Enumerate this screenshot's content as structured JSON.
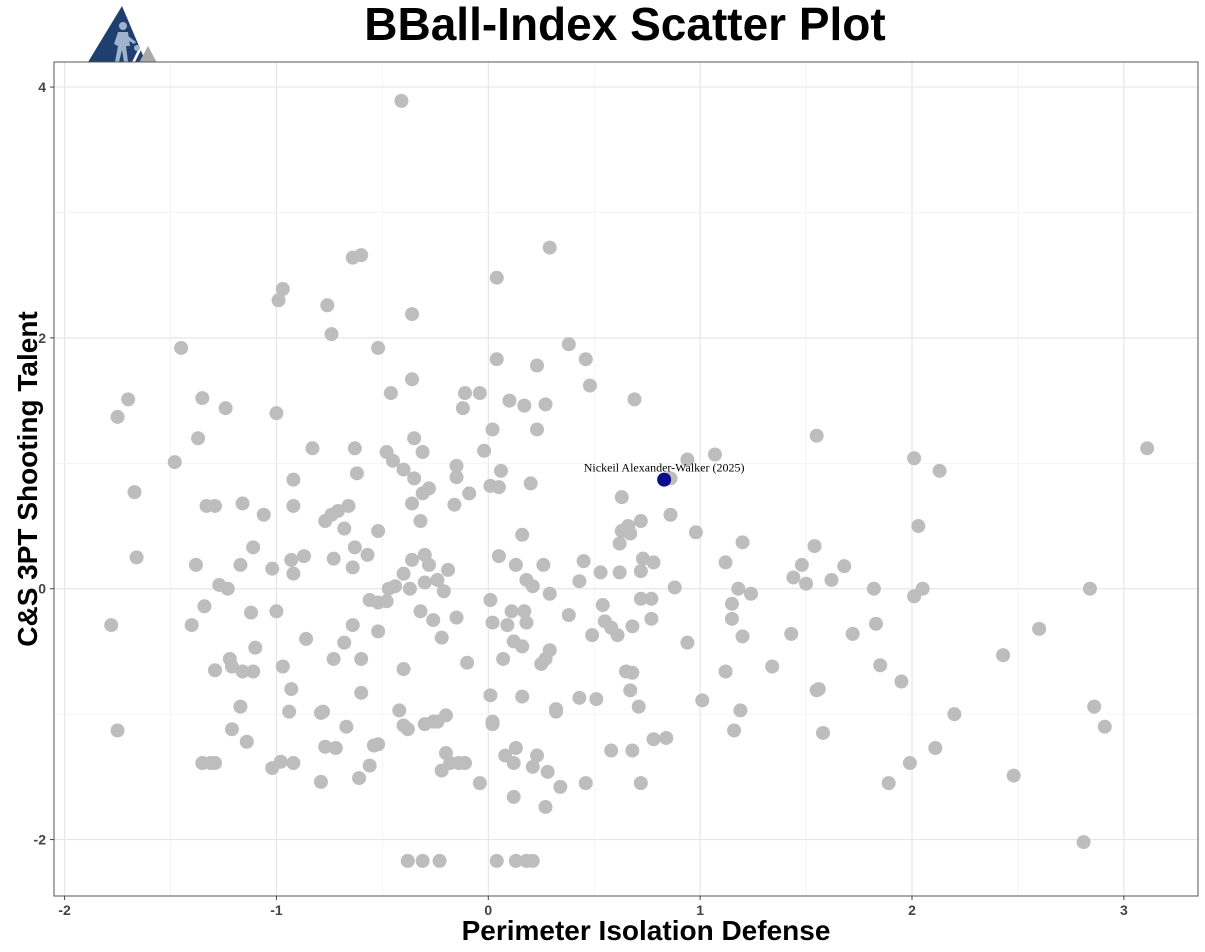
{
  "chart_data": {
    "type": "scatter",
    "title": "BBall-Index Scatter Plot",
    "xlabel": "Perimeter Isolation Defense",
    "ylabel": "C&S 3PT Shooting Talent",
    "xlim": [
      -2.05,
      3.35
    ],
    "ylim": [
      -2.45,
      4.2
    ],
    "xticks": [
      -2,
      -1,
      0,
      1,
      2,
      3
    ],
    "yticks": [
      -2,
      0,
      2,
      4
    ],
    "xtick_labels": [
      "-2",
      "-1",
      "0",
      "1",
      "2",
      "3"
    ],
    "ytick_labels": [
      "-2",
      "0",
      "2",
      "4"
    ],
    "grid": true,
    "point_color": "#bdbdbd",
    "highlight_color": "#0d0d8c",
    "highlight": {
      "label": "Nickeil Alexander-Walker (2025)",
      "x": 0.83,
      "y": 0.87
    },
    "points": [
      [
        -0.41,
        3.89
      ],
      [
        0.29,
        2.72
      ],
      [
        0.04,
        2.48
      ],
      [
        -0.64,
        2.64
      ],
      [
        -0.6,
        2.66
      ],
      [
        -0.97,
        2.39
      ],
      [
        -0.99,
        2.3
      ],
      [
        -0.76,
        2.26
      ],
      [
        -0.36,
        2.19
      ],
      [
        -0.74,
        2.03
      ],
      [
        -1.45,
        1.92
      ],
      [
        -0.52,
        1.92
      ],
      [
        0.38,
        1.95
      ],
      [
        0.46,
        1.83
      ],
      [
        0.04,
        1.83
      ],
      [
        0.23,
        1.78
      ],
      [
        -0.36,
        1.67
      ],
      [
        -0.46,
        1.56
      ],
      [
        -0.11,
        1.56
      ],
      [
        -0.04,
        1.56
      ],
      [
        0.48,
        1.62
      ],
      [
        -1.7,
        1.51
      ],
      [
        -1.35,
        1.52
      ],
      [
        -0.12,
        1.44
      ],
      [
        0.1,
        1.5
      ],
      [
        0.17,
        1.46
      ],
      [
        0.27,
        1.47
      ],
      [
        0.69,
        1.51
      ],
      [
        -1.75,
        1.37
      ],
      [
        -1.24,
        1.44
      ],
      [
        -1.0,
        1.4
      ],
      [
        0.02,
        1.27
      ],
      [
        0.23,
        1.27
      ],
      [
        -1.37,
        1.2
      ],
      [
        -0.35,
        1.2
      ],
      [
        -0.83,
        1.12
      ],
      [
        -0.63,
        1.12
      ],
      [
        -0.48,
        1.09
      ],
      [
        -0.31,
        1.09
      ],
      [
        -0.02,
        1.1
      ],
      [
        1.55,
        1.22
      ],
      [
        3.11,
        1.12
      ],
      [
        0.94,
        1.03
      ],
      [
        1.07,
        1.07
      ],
      [
        2.01,
        1.04
      ],
      [
        -1.48,
        1.01
      ],
      [
        -0.45,
        1.02
      ],
      [
        -0.4,
        0.95
      ],
      [
        -0.62,
        0.92
      ],
      [
        -0.15,
        0.98
      ],
      [
        0.06,
        0.94
      ],
      [
        0.86,
        0.88
      ],
      [
        2.13,
        0.94
      ],
      [
        -0.92,
        0.87
      ],
      [
        -0.35,
        0.88
      ],
      [
        -0.28,
        0.8
      ],
      [
        -0.15,
        0.89
      ],
      [
        0.01,
        0.82
      ],
      [
        0.05,
        0.81
      ],
      [
        0.2,
        0.84
      ],
      [
        -1.67,
        0.77
      ],
      [
        -1.33,
        0.66
      ],
      [
        -1.29,
        0.66
      ],
      [
        -1.16,
        0.68
      ],
      [
        -0.92,
        0.66
      ],
      [
        -0.66,
        0.66
      ],
      [
        -0.36,
        0.68
      ],
      [
        -0.31,
        0.76
      ],
      [
        -0.09,
        0.76
      ],
      [
        -0.16,
        0.67
      ],
      [
        0.63,
        0.73
      ],
      [
        -1.06,
        0.59
      ],
      [
        -0.71,
        0.62
      ],
      [
        -0.74,
        0.59
      ],
      [
        -0.77,
        0.54
      ],
      [
        -0.68,
        0.48
      ],
      [
        -0.52,
        0.46
      ],
      [
        -0.32,
        0.54
      ],
      [
        0.72,
        0.54
      ],
      [
        0.86,
        0.59
      ],
      [
        0.16,
        0.43
      ],
      [
        0.63,
        0.46
      ],
      [
        0.66,
        0.5
      ],
      [
        0.67,
        0.44
      ],
      [
        0.98,
        0.45
      ],
      [
        2.03,
        0.5
      ],
      [
        -1.11,
        0.33
      ],
      [
        -0.63,
        0.33
      ],
      [
        -0.87,
        0.26
      ],
      [
        -0.73,
        0.24
      ],
      [
        -0.57,
        0.27
      ],
      [
        -0.93,
        0.23
      ],
      [
        -0.36,
        0.23
      ],
      [
        -0.3,
        0.27
      ],
      [
        -0.28,
        0.19
      ],
      [
        0.05,
        0.26
      ],
      [
        0.13,
        0.19
      ],
      [
        0.26,
        0.19
      ],
      [
        0.45,
        0.22
      ],
      [
        0.62,
        0.36
      ],
      [
        0.73,
        0.24
      ],
      [
        0.78,
        0.21
      ],
      [
        1.12,
        0.21
      ],
      [
        1.2,
        0.37
      ],
      [
        1.54,
        0.34
      ],
      [
        1.48,
        0.19
      ],
      [
        1.68,
        0.18
      ],
      [
        -1.66,
        0.25
      ],
      [
        -1.38,
        0.19
      ],
      [
        -1.17,
        0.19
      ],
      [
        -1.02,
        0.16
      ],
      [
        -0.92,
        0.12
      ],
      [
        -0.64,
        0.17
      ],
      [
        -0.4,
        0.12
      ],
      [
        -0.24,
        0.07
      ],
      [
        -0.19,
        0.15
      ],
      [
        0.18,
        0.07
      ],
      [
        0.21,
        0.02
      ],
      [
        0.43,
        0.06
      ],
      [
        0.53,
        0.13
      ],
      [
        0.62,
        0.13
      ],
      [
        0.72,
        0.14
      ],
      [
        0.88,
        0.01
      ],
      [
        1.44,
        0.09
      ],
      [
        1.5,
        0.04
      ],
      [
        1.62,
        0.07
      ],
      [
        1.82,
        0.0
      ],
      [
        2.05,
        0.0
      ],
      [
        2.84,
        0.0
      ],
      [
        1.18,
        0.0
      ],
      [
        1.24,
        -0.04
      ],
      [
        -1.27,
        0.03
      ],
      [
        -1.23,
        0.0
      ],
      [
        -0.47,
        0.0
      ],
      [
        -0.44,
        0.02
      ],
      [
        -0.37,
        0.0
      ],
      [
        -0.3,
        0.05
      ],
      [
        -0.21,
        -0.02
      ],
      [
        -0.56,
        -0.09
      ],
      [
        -0.52,
        -0.11
      ],
      [
        -0.48,
        -0.1
      ],
      [
        0.01,
        -0.09
      ],
      [
        0.29,
        -0.04
      ],
      [
        0.54,
        -0.13
      ],
      [
        0.72,
        -0.08
      ],
      [
        0.77,
        -0.08
      ],
      [
        1.15,
        -0.12
      ],
      [
        2.01,
        -0.06
      ],
      [
        -1.34,
        -0.14
      ],
      [
        -1.12,
        -0.19
      ],
      [
        -1.0,
        -0.18
      ],
      [
        -0.32,
        -0.18
      ],
      [
        -0.15,
        -0.23
      ],
      [
        0.11,
        -0.18
      ],
      [
        0.17,
        -0.18
      ],
      [
        0.38,
        -0.21
      ],
      [
        0.55,
        -0.26
      ],
      [
        0.77,
        -0.24
      ],
      [
        1.15,
        -0.24
      ],
      [
        -1.78,
        -0.29
      ],
      [
        -1.4,
        -0.29
      ],
      [
        -0.26,
        -0.25
      ],
      [
        0.02,
        -0.27
      ],
      [
        0.09,
        -0.29
      ],
      [
        0.18,
        -0.27
      ],
      [
        0.58,
        -0.31
      ],
      [
        0.61,
        -0.37
      ],
      [
        0.68,
        -0.3
      ],
      [
        1.2,
        -0.38
      ],
      [
        1.43,
        -0.36
      ],
      [
        1.72,
        -0.36
      ],
      [
        1.83,
        -0.28
      ],
      [
        2.6,
        -0.32
      ],
      [
        -1.22,
        -0.56
      ],
      [
        -1.21,
        -0.62
      ],
      [
        -0.86,
        -0.4
      ],
      [
        -0.68,
        -0.43
      ],
      [
        -0.64,
        -0.29
      ],
      [
        -0.52,
        -0.34
      ],
      [
        -0.22,
        -0.39
      ],
      [
        0.12,
        -0.42
      ],
      [
        0.16,
        -0.46
      ],
      [
        0.29,
        -0.49
      ],
      [
        0.49,
        -0.37
      ],
      [
        0.94,
        -0.43
      ],
      [
        -1.1,
        -0.47
      ],
      [
        -0.73,
        -0.56
      ],
      [
        -0.6,
        -0.56
      ],
      [
        -0.1,
        -0.59
      ],
      [
        0.07,
        -0.56
      ],
      [
        0.27,
        -0.56
      ],
      [
        0.25,
        -0.6
      ],
      [
        -1.29,
        -0.65
      ],
      [
        -1.16,
        -0.66
      ],
      [
        -1.11,
        -0.66
      ],
      [
        -0.97,
        -0.62
      ],
      [
        -0.4,
        -0.64
      ],
      [
        0.65,
        -0.66
      ],
      [
        0.68,
        -0.67
      ],
      [
        1.12,
        -0.66
      ],
      [
        1.34,
        -0.62
      ],
      [
        1.85,
        -0.61
      ],
      [
        1.95,
        -0.74
      ],
      [
        2.43,
        -0.53
      ],
      [
        -0.93,
        -0.8
      ],
      [
        -0.6,
        -0.83
      ],
      [
        0.01,
        -0.85
      ],
      [
        0.16,
        -0.86
      ],
      [
        0.43,
        -0.87
      ],
      [
        0.51,
        -0.88
      ],
      [
        0.67,
        -0.81
      ],
      [
        1.01,
        -0.89
      ],
      [
        1.55,
        -0.81
      ],
      [
        1.56,
        -0.8
      ],
      [
        -1.17,
        -0.94
      ],
      [
        -0.94,
        -0.98
      ],
      [
        -0.79,
        -0.99
      ],
      [
        -0.78,
        -0.98
      ],
      [
        -0.42,
        -0.97
      ],
      [
        -0.26,
        -1.06
      ],
      [
        -0.2,
        -1.01
      ],
      [
        0.02,
        -1.06
      ],
      [
        0.32,
        -0.98
      ],
      [
        0.32,
        -0.96
      ],
      [
        0.71,
        -0.94
      ],
      [
        1.19,
        -0.97
      ],
      [
        2.2,
        -1.0
      ],
      [
        2.86,
        -0.94
      ],
      [
        -1.75,
        -1.13
      ],
      [
        -1.21,
        -1.12
      ],
      [
        -0.67,
        -1.1
      ],
      [
        -0.4,
        -1.09
      ],
      [
        -0.38,
        -1.12
      ],
      [
        -0.3,
        -1.08
      ],
      [
        -0.24,
        -1.06
      ],
      [
        0.02,
        -1.08
      ],
      [
        1.16,
        -1.13
      ],
      [
        1.58,
        -1.15
      ],
      [
        2.91,
        -1.1
      ],
      [
        -1.14,
        -1.22
      ],
      [
        -0.77,
        -1.26
      ],
      [
        -0.72,
        -1.27
      ],
      [
        -0.54,
        -1.25
      ],
      [
        -0.52,
        -1.24
      ],
      [
        -0.2,
        -1.31
      ],
      [
        0.13,
        -1.27
      ],
      [
        0.23,
        -1.33
      ],
      [
        0.58,
        -1.29
      ],
      [
        0.68,
        -1.29
      ],
      [
        0.78,
        -1.2
      ],
      [
        0.84,
        -1.19
      ],
      [
        2.11,
        -1.27
      ],
      [
        -1.35,
        -1.39
      ],
      [
        -1.31,
        -1.39
      ],
      [
        -1.29,
        -1.39
      ],
      [
        -1.02,
        -1.43
      ],
      [
        -0.98,
        -1.38
      ],
      [
        -0.92,
        -1.39
      ],
      [
        -0.56,
        -1.41
      ],
      [
        -0.18,
        -1.39
      ],
      [
        -0.14,
        -1.39
      ],
      [
        -0.11,
        -1.39
      ],
      [
        -0.22,
        -1.45
      ],
      [
        0.08,
        -1.33
      ],
      [
        0.12,
        -1.39
      ],
      [
        0.21,
        -1.42
      ],
      [
        0.28,
        -1.46
      ],
      [
        1.99,
        -1.39
      ],
      [
        -0.79,
        -1.54
      ],
      [
        -0.61,
        -1.51
      ],
      [
        -0.04,
        -1.55
      ],
      [
        0.34,
        -1.58
      ],
      [
        0.46,
        -1.55
      ],
      [
        0.72,
        -1.55
      ],
      [
        1.89,
        -1.55
      ],
      [
        2.48,
        -1.49
      ],
      [
        0.12,
        -1.66
      ],
      [
        0.27,
        -1.74
      ],
      [
        2.81,
        -2.02
      ],
      [
        -0.38,
        -2.17
      ],
      [
        -0.31,
        -2.17
      ],
      [
        -0.23,
        -2.17
      ],
      [
        0.04,
        -2.17
      ],
      [
        0.13,
        -2.17
      ],
      [
        0.18,
        -2.17
      ],
      [
        0.21,
        -2.17
      ]
    ]
  }
}
